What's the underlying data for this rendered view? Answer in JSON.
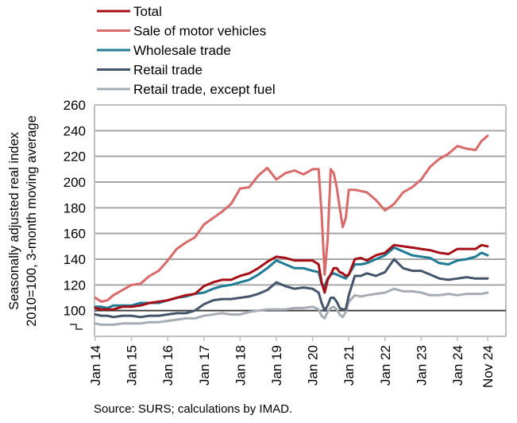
{
  "chart_data": {
    "type": "line",
    "title": "",
    "xlabel": "",
    "ylabel": "Seasonally adjusted real index 2010=100, 3-month moving average",
    "ylabel_lines": [
      "Seasonally adjusted real index",
      "2010=100, 3-month moving average"
    ],
    "ylim": [
      80,
      260
    ],
    "yticks": [
      100,
      120,
      140,
      160,
      180,
      200,
      220,
      240,
      260
    ],
    "y_break_marker": true,
    "grid": true,
    "reference_line": 100,
    "legend_position": "top-left",
    "x_tick_labels": [
      "Jan 14",
      "Jan 15",
      "Jan 16",
      "Jan 17",
      "Jan 18",
      "Jan 19",
      "Jan 20",
      "Jan 21",
      "Jan 22",
      "Jan 23",
      "Jan 24",
      "Nov 24"
    ],
    "x_tick_months": [
      0,
      12,
      24,
      36,
      48,
      60,
      72,
      84,
      96,
      108,
      120,
      130
    ],
    "x_months": [
      0,
      2,
      4,
      6,
      9,
      12,
      15,
      18,
      21,
      24,
      27,
      30,
      33,
      36,
      39,
      42,
      45,
      48,
      51,
      54,
      57,
      60,
      63,
      66,
      69,
      72,
      74,
      75,
      76,
      77,
      78,
      79,
      80,
      81,
      82,
      83,
      84,
      86,
      88,
      90,
      93,
      96,
      99,
      102,
      105,
      108,
      111,
      114,
      117,
      120,
      123,
      126,
      128,
      130
    ],
    "series": [
      {
        "name": "Total",
        "color": "#A50F15",
        "values": [
          102,
          101,
          101,
          101,
          103,
          103,
          104,
          106,
          107,
          108,
          110,
          112,
          113,
          119,
          122,
          124,
          124,
          127,
          129,
          133,
          138,
          142,
          141,
          139,
          139,
          139,
          136,
          122,
          114,
          124,
          128,
          133,
          133,
          130,
          129,
          127,
          128,
          140,
          141,
          139,
          143,
          145,
          151,
          150,
          149,
          148,
          147,
          145,
          144,
          148,
          148,
          148,
          151,
          150
        ]
      },
      {
        "name": "Sale of motor vehicles",
        "color": "#D86A6A",
        "values": [
          110,
          107,
          108,
          112,
          116,
          120,
          121,
          127,
          131,
          139,
          148,
          153,
          157,
          167,
          172,
          177,
          183,
          195,
          196,
          205,
          211,
          202,
          207,
          209,
          206,
          210,
          210,
          175,
          128,
          155,
          210,
          207,
          196,
          180,
          165,
          172,
          194,
          194,
          193,
          192,
          186,
          178,
          183,
          192,
          196,
          202,
          212,
          218,
          222,
          228,
          226,
          225,
          232,
          236
        ]
      },
      {
        "name": "Wholesale trade",
        "color": "#1F7A94",
        "values": [
          103,
          103,
          102,
          104,
          104,
          104,
          106,
          106,
          106,
          108,
          110,
          111,
          113,
          114,
          117,
          119,
          120,
          122,
          124,
          128,
          133,
          139,
          136,
          133,
          133,
          131,
          130,
          121,
          119,
          125,
          128,
          129,
          128,
          127,
          126,
          125,
          128,
          136,
          136,
          137,
          140,
          143,
          149,
          146,
          143,
          142,
          141,
          137,
          136,
          139,
          140,
          142,
          145,
          143
        ]
      },
      {
        "name": "Retail trade",
        "color": "#44546A",
        "values": [
          97,
          96,
          96,
          95,
          96,
          96,
          95,
          96,
          96,
          97,
          98,
          98,
          100,
          105,
          108,
          109,
          109,
          110,
          111,
          113,
          116,
          122,
          119,
          117,
          118,
          117,
          114,
          106,
          100,
          104,
          110,
          110,
          107,
          102,
          101,
          101,
          112,
          127,
          127,
          129,
          127,
          130,
          140,
          133,
          131,
          131,
          128,
          125,
          124,
          125,
          126,
          125,
          125,
          125
        ]
      },
      {
        "name": "Retail trade, except fuel",
        "color": "#A6ACB3",
        "values": [
          90,
          89,
          89,
          89,
          90,
          90,
          90,
          91,
          91,
          92,
          93,
          94,
          94,
          96,
          97,
          98,
          97,
          97,
          99,
          100,
          101,
          101,
          101,
          102,
          102,
          103,
          101,
          96,
          94,
          99,
          102,
          103,
          101,
          97,
          95,
          99,
          107,
          112,
          111,
          112,
          113,
          114,
          117,
          115,
          115,
          114,
          112,
          112,
          113,
          112,
          113,
          113,
          113,
          114
        ]
      }
    ]
  },
  "source": "Source: SURS; calculations by IMAD."
}
